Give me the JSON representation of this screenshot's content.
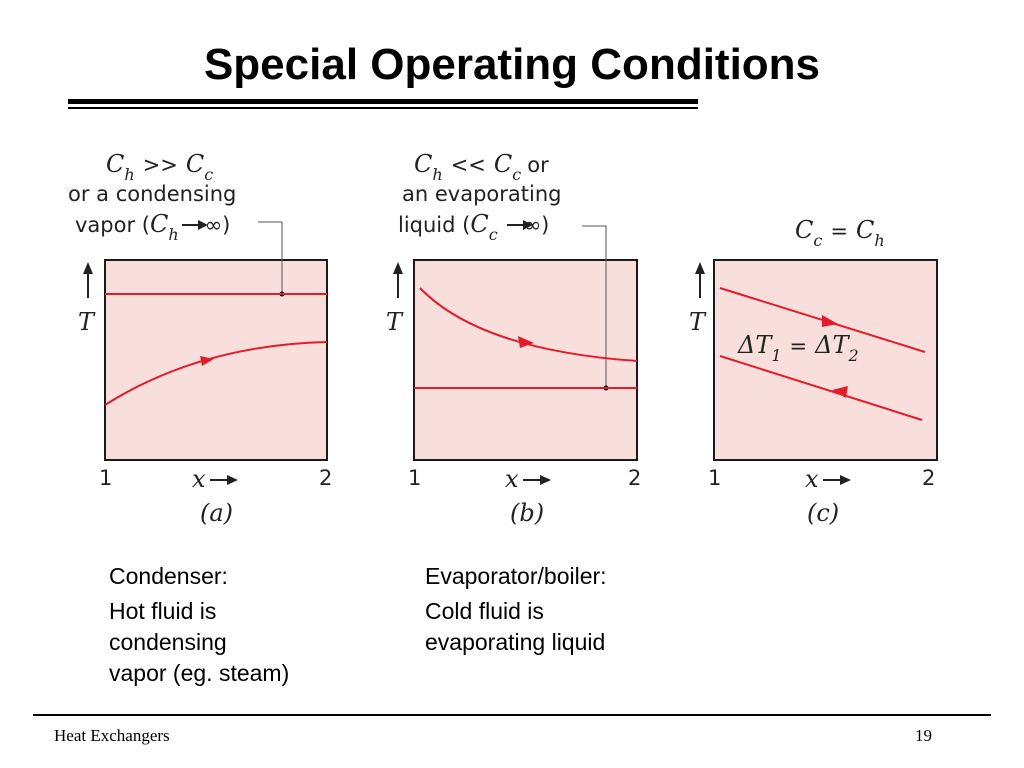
{
  "slide": {
    "title": "Special Operating Conditions",
    "footer_left": "Heat Exchangers",
    "page_number": "19"
  },
  "panels": [
    {
      "label_symbol_left": "C",
      "label_sub_left": "h",
      "label_op": ">>",
      "label_symbol_right": "C",
      "label_sub_right": "c",
      "line2": "or a condensing",
      "line3_prefix": "vapor (",
      "line3_symbol": "C",
      "line3_sub": "h",
      "line3_suffix": "∞)",
      "y_axis": "T",
      "x_axis": "x",
      "x_start": "1",
      "x_end": "2",
      "caption": "(a)"
    },
    {
      "label_symbol_left": "C",
      "label_sub_left": "h",
      "label_op": "<<",
      "label_symbol_right": "C",
      "label_sub_right": "c",
      "label_or": "or",
      "line2": "an evaporating",
      "line3_prefix": "liquid (",
      "line3_symbol": "C",
      "line3_sub": "c",
      "line3_suffix": "∞)",
      "y_axis": "T",
      "x_axis": "x",
      "x_start": "1",
      "x_end": "2",
      "caption": "(b)"
    },
    {
      "label_symbol_left": "C",
      "label_sub_left": "c",
      "label_op": "=",
      "label_symbol_right": "C",
      "label_sub_right": "h",
      "delta_left": "ΔT",
      "delta_left_sub": "1",
      "delta_op": "=",
      "delta_right": "ΔT",
      "delta_right_sub": "2",
      "y_axis": "T",
      "x_axis": "x",
      "x_start": "1",
      "x_end": "2",
      "caption": "(c)"
    }
  ],
  "captions": {
    "condenser_title": "Condenser:",
    "condenser_line1": "Hot fluid is",
    "condenser_line2": "condensing",
    "condenser_line3": "vapor (eg. steam)",
    "evaporator_title": "Evaporator/boiler:",
    "evaporator_line1": "Cold fluid is",
    "evaporator_line2": "evaporating liquid"
  },
  "colors": {
    "plot_fill": "#f9dfdc",
    "curve": "#e31b2b",
    "frame": "#1a1a1a",
    "leader": "#555555"
  }
}
